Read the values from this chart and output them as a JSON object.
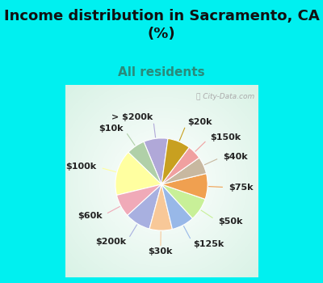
{
  "title": "Income distribution in Sacramento, CA\n(%)",
  "subtitle": "All residents",
  "title_fontsize": 13,
  "subtitle_fontsize": 11,
  "watermark": "ⓘ City-Data.com",
  "labels": [
    "> $200k",
    "$10k",
    "$100k",
    "$60k",
    "$200k",
    "$30k",
    "$125k",
    "$50k",
    "$75k",
    "$40k",
    "$150k",
    "$20k"
  ],
  "values": [
    8.5,
    6.5,
    16,
    8,
    9,
    8,
    8,
    8,
    9,
    6,
    5,
    8
  ],
  "colors": [
    "#b0a8d8",
    "#b0d0a8",
    "#ffffa0",
    "#f0aab8",
    "#a8b0e0",
    "#f8c898",
    "#98b8e8",
    "#c8f098",
    "#f0a050",
    "#c8b8a0",
    "#f0a0a0",
    "#c8a020"
  ],
  "bg_cyan": "#00f0f0",
  "bg_chart": "#e0f0e8",
  "label_fontsize": 8,
  "label_color": "#222222",
  "startangle": 82
}
